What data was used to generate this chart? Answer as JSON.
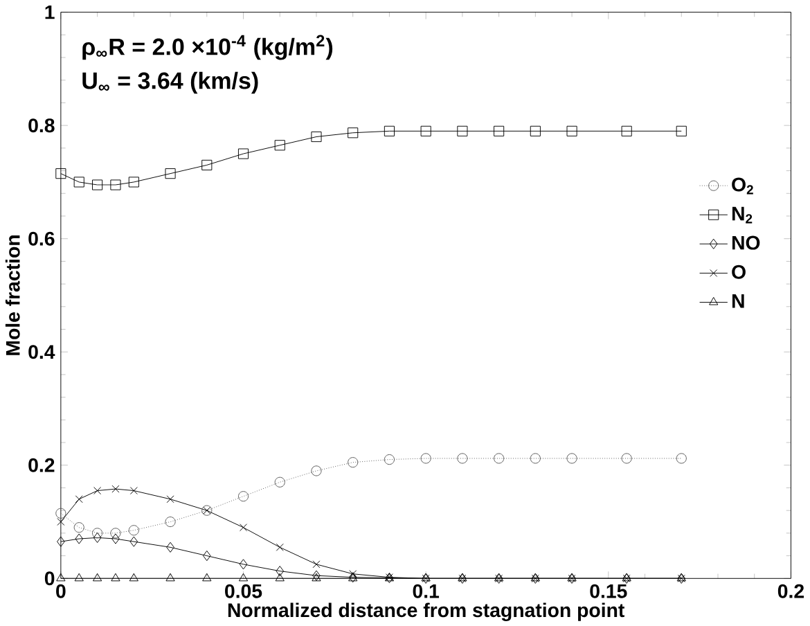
{
  "chart_data": {
    "type": "line",
    "xlabel": "Normalized distance from stagnation point",
    "ylabel": "Mole fraction",
    "annotations": [
      "ρ$_{∞}$R = 2.0 ×10$^{-4}$ (kg/m$^{2}$)",
      "U$_{∞}$ = 3.64 (km/s)"
    ],
    "x": [
      0,
      0.005,
      0.01,
      0.015,
      0.02,
      0.03,
      0.04,
      0.05,
      0.06,
      0.07,
      0.08,
      0.09,
      0.1,
      0.11,
      0.12,
      0.13,
      0.14,
      0.155,
      0.17
    ],
    "series": [
      {
        "name": "O$_{2}$",
        "color": "#555555",
        "marker": "circle",
        "line_style": "dotted",
        "values": [
          0.115,
          0.09,
          0.08,
          0.08,
          0.085,
          0.1,
          0.12,
          0.145,
          0.17,
          0.19,
          0.205,
          0.21,
          0.212,
          0.212,
          0.212,
          0.212,
          0.212,
          0.212,
          0.212
        ]
      },
      {
        "name": "N$_{2}$",
        "color": "#000000",
        "marker": "square",
        "line_style": "solid",
        "values": [
          0.715,
          0.7,
          0.695,
          0.695,
          0.7,
          0.715,
          0.73,
          0.75,
          0.765,
          0.78,
          0.787,
          0.79,
          0.79,
          0.79,
          0.79,
          0.79,
          0.79,
          0.79,
          0.79
        ]
      },
      {
        "name": "NO",
        "color": "#000000",
        "marker": "diamond",
        "line_style": "solid",
        "values": [
          0.065,
          0.07,
          0.072,
          0.07,
          0.065,
          0.055,
          0.04,
          0.025,
          0.013,
          0.005,
          0.002,
          0.001,
          0,
          0,
          0,
          0,
          0,
          0,
          0
        ]
      },
      {
        "name": "O",
        "color": "#000000",
        "marker": "cross",
        "line_style": "solid",
        "values": [
          0.1,
          0.14,
          0.155,
          0.158,
          0.155,
          0.14,
          0.12,
          0.09,
          0.055,
          0.025,
          0.008,
          0.002,
          0,
          0,
          0,
          0,
          0,
          0,
          0
        ]
      },
      {
        "name": "N",
        "color": "#000000",
        "marker": "triangle",
        "line_style": "solid",
        "values": [
          0,
          0,
          0,
          0,
          0,
          0,
          0,
          0,
          0,
          0,
          0,
          0,
          0,
          0,
          0,
          0,
          0,
          0,
          0
        ]
      }
    ],
    "xlim": [
      0,
      0.2
    ],
    "ylim": [
      0,
      1
    ],
    "xticks": [
      0,
      0.05,
      0.1,
      0.15,
      0.2
    ],
    "yticks": [
      0,
      0.2,
      0.4,
      0.6,
      0.8,
      1
    ],
    "grid": false,
    "legend": "right"
  }
}
